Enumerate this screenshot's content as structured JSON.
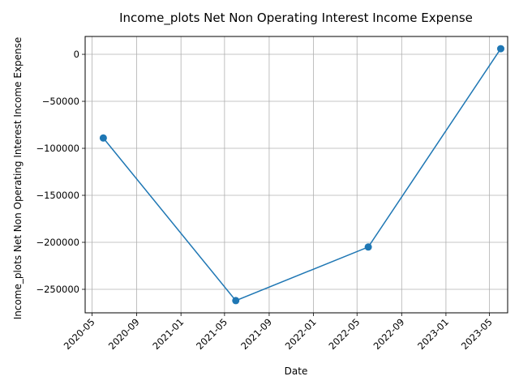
{
  "chart_data": {
    "type": "line",
    "title": "Income_plots Net Non Operating Interest Income Expense",
    "xlabel": "Date",
    "ylabel": "Income_plots Net Non Operating Interest Income Expense",
    "x": [
      "2020-06-01",
      "2021-06-01",
      "2022-06-01",
      "2023-06-01"
    ],
    "series": [
      {
        "values": [
          -89000,
          -262000,
          -205000,
          6000
        ]
      }
    ],
    "x_ticks": [
      "2020-05",
      "2020-09",
      "2021-01",
      "2021-05",
      "2021-09",
      "2022-01",
      "2022-05",
      "2022-09",
      "2023-01",
      "2023-05"
    ],
    "y_ticks": [
      0,
      -50000,
      -100000,
      -150000,
      -200000,
      -250000
    ],
    "y_tick_labels": [
      "0",
      "−50000",
      "−100000",
      "−150000",
      "−200000",
      "−250000"
    ],
    "xlim": [
      "2020-04-12",
      "2023-06-20"
    ],
    "ylim": [
      -275000,
      19000
    ],
    "grid": true,
    "line_color": "#1f77b4"
  }
}
